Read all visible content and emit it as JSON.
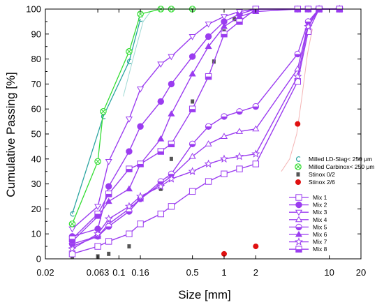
{
  "chart_data": {
    "type": "line",
    "xlabel": "Size [mm]",
    "ylabel": "Cumulative Passing [%]",
    "xscale": "log",
    "xlim": [
      0.02,
      20
    ],
    "ylim": [
      0,
      100
    ],
    "xticks": [
      0.02,
      0.063,
      0.1,
      0.16,
      0.5,
      1,
      2,
      10,
      20
    ],
    "xtick_labels": [
      "0.02",
      "0.063",
      "0.1",
      "0.16",
      "0.5",
      "1",
      "2",
      "10",
      "20"
    ],
    "yticks": [
      0,
      10,
      20,
      30,
      40,
      50,
      60,
      70,
      80,
      90,
      100
    ],
    "grid": false,
    "colors": {
      "mix": "#9b3cf0",
      "slag": "#2aa4a0",
      "carbinox": "#33dd33",
      "stinox02": "#555555",
      "stinox26": "#e01010",
      "faint_curve": "#f4b4b4"
    },
    "legend_groups": [
      {
        "position": "right-middle",
        "items": [
          {
            "label": "Milled LD-Slag< 250 μm",
            "color": "#2aa4a0",
            "marker": "c-shape"
          },
          {
            "label": "Milled Carbinox< 250 μm",
            "color": "#33dd33",
            "marker": "circle-x"
          },
          {
            "label": "Stinox 0/2",
            "color": "#555555",
            "marker": "square"
          },
          {
            "label": "Stinox 2/6",
            "color": "#e01010",
            "marker": "circle"
          }
        ]
      },
      {
        "position": "bottom-right",
        "items": [
          {
            "label": "Mix 1",
            "color": "#9b3cf0",
            "marker": "square-open"
          },
          {
            "label": "Mix 2",
            "color": "#9b3cf0",
            "marker": "circle-filled"
          },
          {
            "label": "Mix 3",
            "color": "#9b3cf0",
            "marker": "triangle-down"
          },
          {
            "label": "Mix 4",
            "color": "#9b3cf0",
            "marker": "triangle-up-open"
          },
          {
            "label": "Mix 5",
            "color": "#9b3cf0",
            "marker": "circle-half"
          },
          {
            "label": "Mix 6",
            "color": "#9b3cf0",
            "marker": "triangle-up-filled"
          },
          {
            "label": "Mix 7",
            "color": "#9b3cf0",
            "marker": "star"
          },
          {
            "label": "Mix 8",
            "color": "#9b3cf0",
            "marker": "square-half"
          }
        ]
      }
    ],
    "series": [
      {
        "name": "Milled LD-Slag< 250 μm",
        "color": "#2aa4a0",
        "marker": "c-shape",
        "x": [
          0.036,
          0.071,
          0.125,
          0.16
        ],
        "y": [
          18,
          57,
          79,
          96
        ]
      },
      {
        "name": "Milled Carbinox< 250 μm",
        "color": "#33dd33",
        "marker": "circle-x",
        "x": [
          0.036,
          0.063,
          0.071,
          0.125,
          0.16,
          0.25,
          0.315,
          0.5
        ],
        "y": [
          14,
          39,
          59,
          83,
          98,
          100,
          100,
          100
        ]
      },
      {
        "name": "Stinox 0/2",
        "color": "#555555",
        "marker": "square",
        "x": [
          0.036,
          0.063,
          0.08,
          0.125,
          0.16,
          0.25,
          0.315,
          0.5,
          0.8,
          1.0,
          1.25,
          2.0
        ],
        "y": [
          1,
          1,
          2,
          5,
          14,
          28,
          40,
          63,
          79,
          91,
          96,
          100
        ]
      },
      {
        "name": "Stinox 2/6",
        "color": "#e01010",
        "marker": "circle",
        "x": [
          1.0,
          2.0,
          5.0
        ],
        "y": [
          2,
          5,
          54
        ]
      },
      {
        "name": "Mix 1",
        "color": "#9b3cf0",
        "marker": "square-open",
        "x": [
          0.036,
          0.063,
          0.08,
          0.125,
          0.16,
          0.25,
          0.315,
          0.5,
          0.71,
          1.0,
          1.4,
          2.0,
          5.0,
          6.3,
          8.0,
          12.5
        ],
        "y": [
          2,
          5,
          7,
          10,
          14,
          18,
          21,
          27,
          31,
          34,
          36,
          38,
          71,
          91,
          100,
          100
        ]
      },
      {
        "name": "Mix 2",
        "color": "#9b3cf0",
        "marker": "circle-filled",
        "x": [
          0.036,
          0.063,
          0.08,
          0.125,
          0.16,
          0.25,
          0.315,
          0.5,
          0.71,
          1.0,
          1.4,
          2.0,
          5.0,
          6.3,
          8.0,
          12.5
        ],
        "y": [
          9,
          12,
          29,
          43,
          53,
          63,
          70,
          81,
          89,
          95,
          98,
          100,
          100,
          100,
          100,
          100
        ]
      },
      {
        "name": "Mix 3",
        "color": "#9b3cf0",
        "marker": "triangle-down",
        "x": [
          0.036,
          0.063,
          0.08,
          0.125,
          0.16,
          0.25,
          0.315,
          0.5,
          0.71,
          1.0,
          1.4,
          2.0,
          5.0,
          6.3,
          8.0,
          12.5
        ],
        "y": [
          12,
          21,
          39,
          56,
          68,
          78,
          81,
          89,
          94,
          97,
          99,
          100,
          100,
          100,
          100,
          100
        ]
      },
      {
        "name": "Mix 4",
        "color": "#9b3cf0",
        "marker": "triangle-up-open",
        "x": [
          0.036,
          0.063,
          0.08,
          0.125,
          0.16,
          0.25,
          0.315,
          0.5,
          0.71,
          1.0,
          1.4,
          2.0,
          5.0,
          6.3,
          8.0,
          12.5
        ],
        "y": [
          5,
          9,
          14,
          20,
          24,
          30,
          33,
          41,
          46,
          49,
          51,
          52,
          76,
          94,
          100,
          100
        ]
      },
      {
        "name": "Mix 5",
        "color": "#9b3cf0",
        "marker": "circle-half",
        "x": [
          0.036,
          0.063,
          0.08,
          0.125,
          0.16,
          0.25,
          0.315,
          0.5,
          0.71,
          1.0,
          1.4,
          2.0,
          5.0,
          6.3,
          8.0,
          12.5
        ],
        "y": [
          6,
          9,
          13,
          19,
          24,
          31,
          34,
          46,
          53,
          57,
          59,
          61,
          82,
          95,
          100,
          100
        ]
      },
      {
        "name": "Mix 6",
        "color": "#9b3cf0",
        "marker": "triangle-up-filled",
        "x": [
          0.036,
          0.063,
          0.08,
          0.125,
          0.16,
          0.25,
          0.315,
          0.5,
          0.71,
          1.0,
          1.4,
          2.0,
          5.0,
          6.3,
          8.0,
          12.5
        ],
        "y": [
          7,
          17,
          23,
          28,
          38,
          48,
          58,
          74,
          85,
          93,
          97,
          99,
          100,
          100,
          100,
          100
        ]
      },
      {
        "name": "Mix 7",
        "color": "#9b3cf0",
        "marker": "star",
        "x": [
          0.036,
          0.063,
          0.08,
          0.125,
          0.16,
          0.25,
          0.315,
          0.5,
          0.71,
          1.0,
          1.4,
          2.0,
          5.0,
          6.3,
          8.0,
          12.5
        ],
        "y": [
          4,
          10,
          16,
          21,
          25,
          29,
          32,
          35,
          38,
          40,
          41,
          42,
          73,
          93,
          100,
          100
        ]
      },
      {
        "name": "Mix 8",
        "color": "#9b3cf0",
        "marker": "square-half",
        "x": [
          0.036,
          0.063,
          0.08,
          0.125,
          0.16,
          0.25,
          0.315,
          0.5,
          0.71,
          1.0,
          1.4,
          2.0,
          5.0,
          6.3,
          8.0,
          12.5
        ],
        "y": [
          8,
          18,
          26,
          36,
          38,
          43,
          46,
          60,
          73,
          90,
          95,
          100,
          100,
          100,
          100,
          100
        ]
      }
    ]
  }
}
